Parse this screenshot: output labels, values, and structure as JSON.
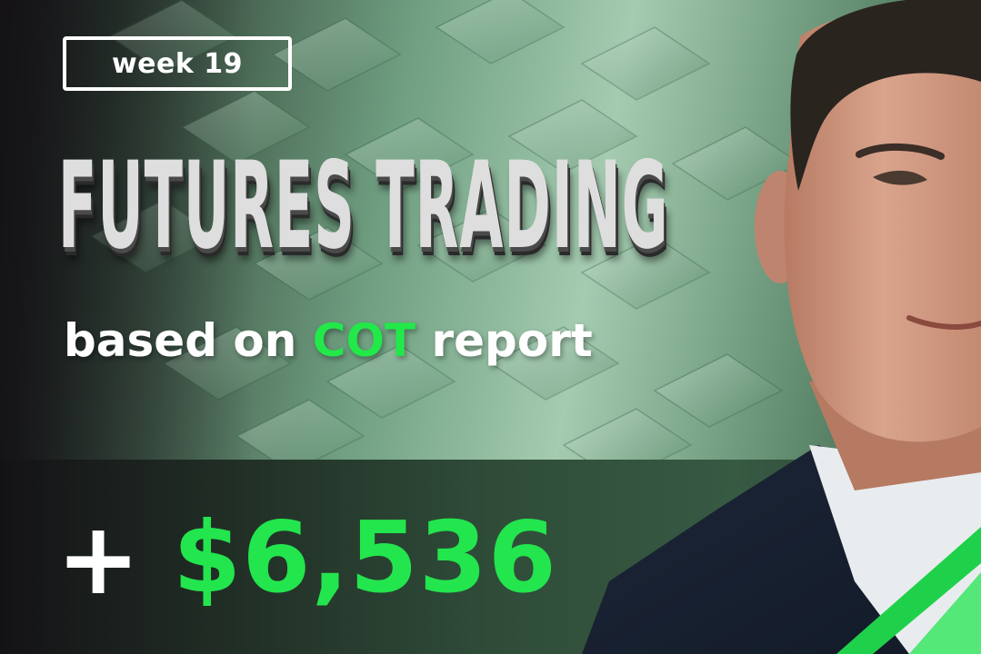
{
  "badge": {
    "label": "week 19"
  },
  "title": {
    "text": "FUTURES TRADING"
  },
  "subtitle": {
    "part1": "based on ",
    "highlight": "COT",
    "part2": " report"
  },
  "amount": {
    "sign": "+",
    "value": "$6,536"
  },
  "colors": {
    "accent_green": "#23e54d",
    "text_white": "#ffffff",
    "background_green": "#8fbf9e",
    "dark": "#1a1d1b"
  },
  "icons": [
    "plus-icon"
  ]
}
